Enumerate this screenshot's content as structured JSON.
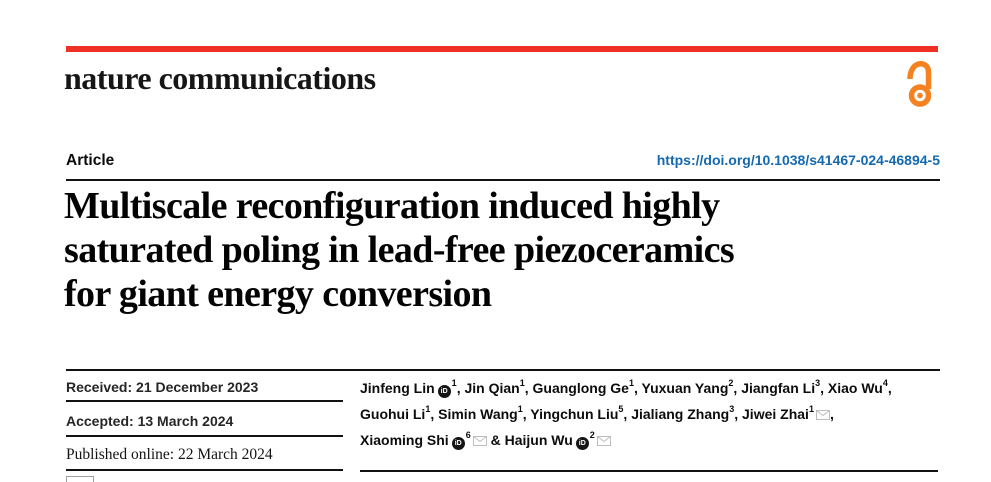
{
  "brand": {
    "logo": "nature communications",
    "accent_red": "#ee3124",
    "open_access_color": "#f58220",
    "open_access_icon": "open-access-lock-icon"
  },
  "article_bar": {
    "label": "Article",
    "doi": "https://doi.org/10.1038/s41467-024-46894-5",
    "doi_color": "#1569b0"
  },
  "title": {
    "full": "Multiscale reconfiguration induced highly saturated poling in lead-free piezoceramics for giant energy conversion",
    "lines": [
      "Multiscale reconfiguration induced highly",
      "saturated poling in lead-free piezoceramics",
      "for giant energy conversion"
    ]
  },
  "history": {
    "received": "Received: 21 December 2023",
    "accepted": "Accepted: 13 March 2024",
    "published": "Published online: 22 March 2024"
  },
  "icons": {
    "orcid": "orcid-icon",
    "orcid_color": "#151515",
    "envelope": "envelope-icon",
    "envelope_color": "#bdbdbd"
  },
  "authors": {
    "lines": [
      [
        {
          "name": "Jinfeng Lin",
          "orcid": true,
          "sup": "1",
          "mail": false,
          "sep": ", "
        },
        {
          "name": "Jin Qian",
          "orcid": false,
          "sup": "1",
          "mail": false,
          "sep": ", "
        },
        {
          "name": "Guanglong Ge",
          "orcid": false,
          "sup": "1",
          "mail": false,
          "sep": ", "
        },
        {
          "name": "Yuxuan Yang",
          "orcid": false,
          "sup": "2",
          "mail": false,
          "sep": ", "
        },
        {
          "name": "Jiangfan Li",
          "orcid": false,
          "sup": "3",
          "mail": false,
          "sep": ", "
        },
        {
          "name": "Xiao Wu",
          "orcid": false,
          "sup": "4",
          "mail": false,
          "sep": ","
        }
      ],
      [
        {
          "name": "Guohui Li",
          "orcid": false,
          "sup": "1",
          "mail": false,
          "sep": ", "
        },
        {
          "name": "Simin Wang",
          "orcid": false,
          "sup": "1",
          "mail": false,
          "sep": ", "
        },
        {
          "name": "Yingchun Liu",
          "orcid": false,
          "sup": "5",
          "mail": false,
          "sep": ", "
        },
        {
          "name": "Jialiang Zhang",
          "orcid": false,
          "sup": "3",
          "mail": false,
          "sep": ", "
        },
        {
          "name": "Jiwei Zhai",
          "orcid": false,
          "sup": "1",
          "mail": true,
          "sep": ","
        }
      ],
      [
        {
          "name": "Xiaoming Shi",
          "orcid": true,
          "sup": "6",
          "mail": true,
          "sep": " & "
        },
        {
          "name": "Haijun Wu",
          "orcid": true,
          "sup": "2",
          "mail": true,
          "sep": ""
        }
      ]
    ]
  }
}
